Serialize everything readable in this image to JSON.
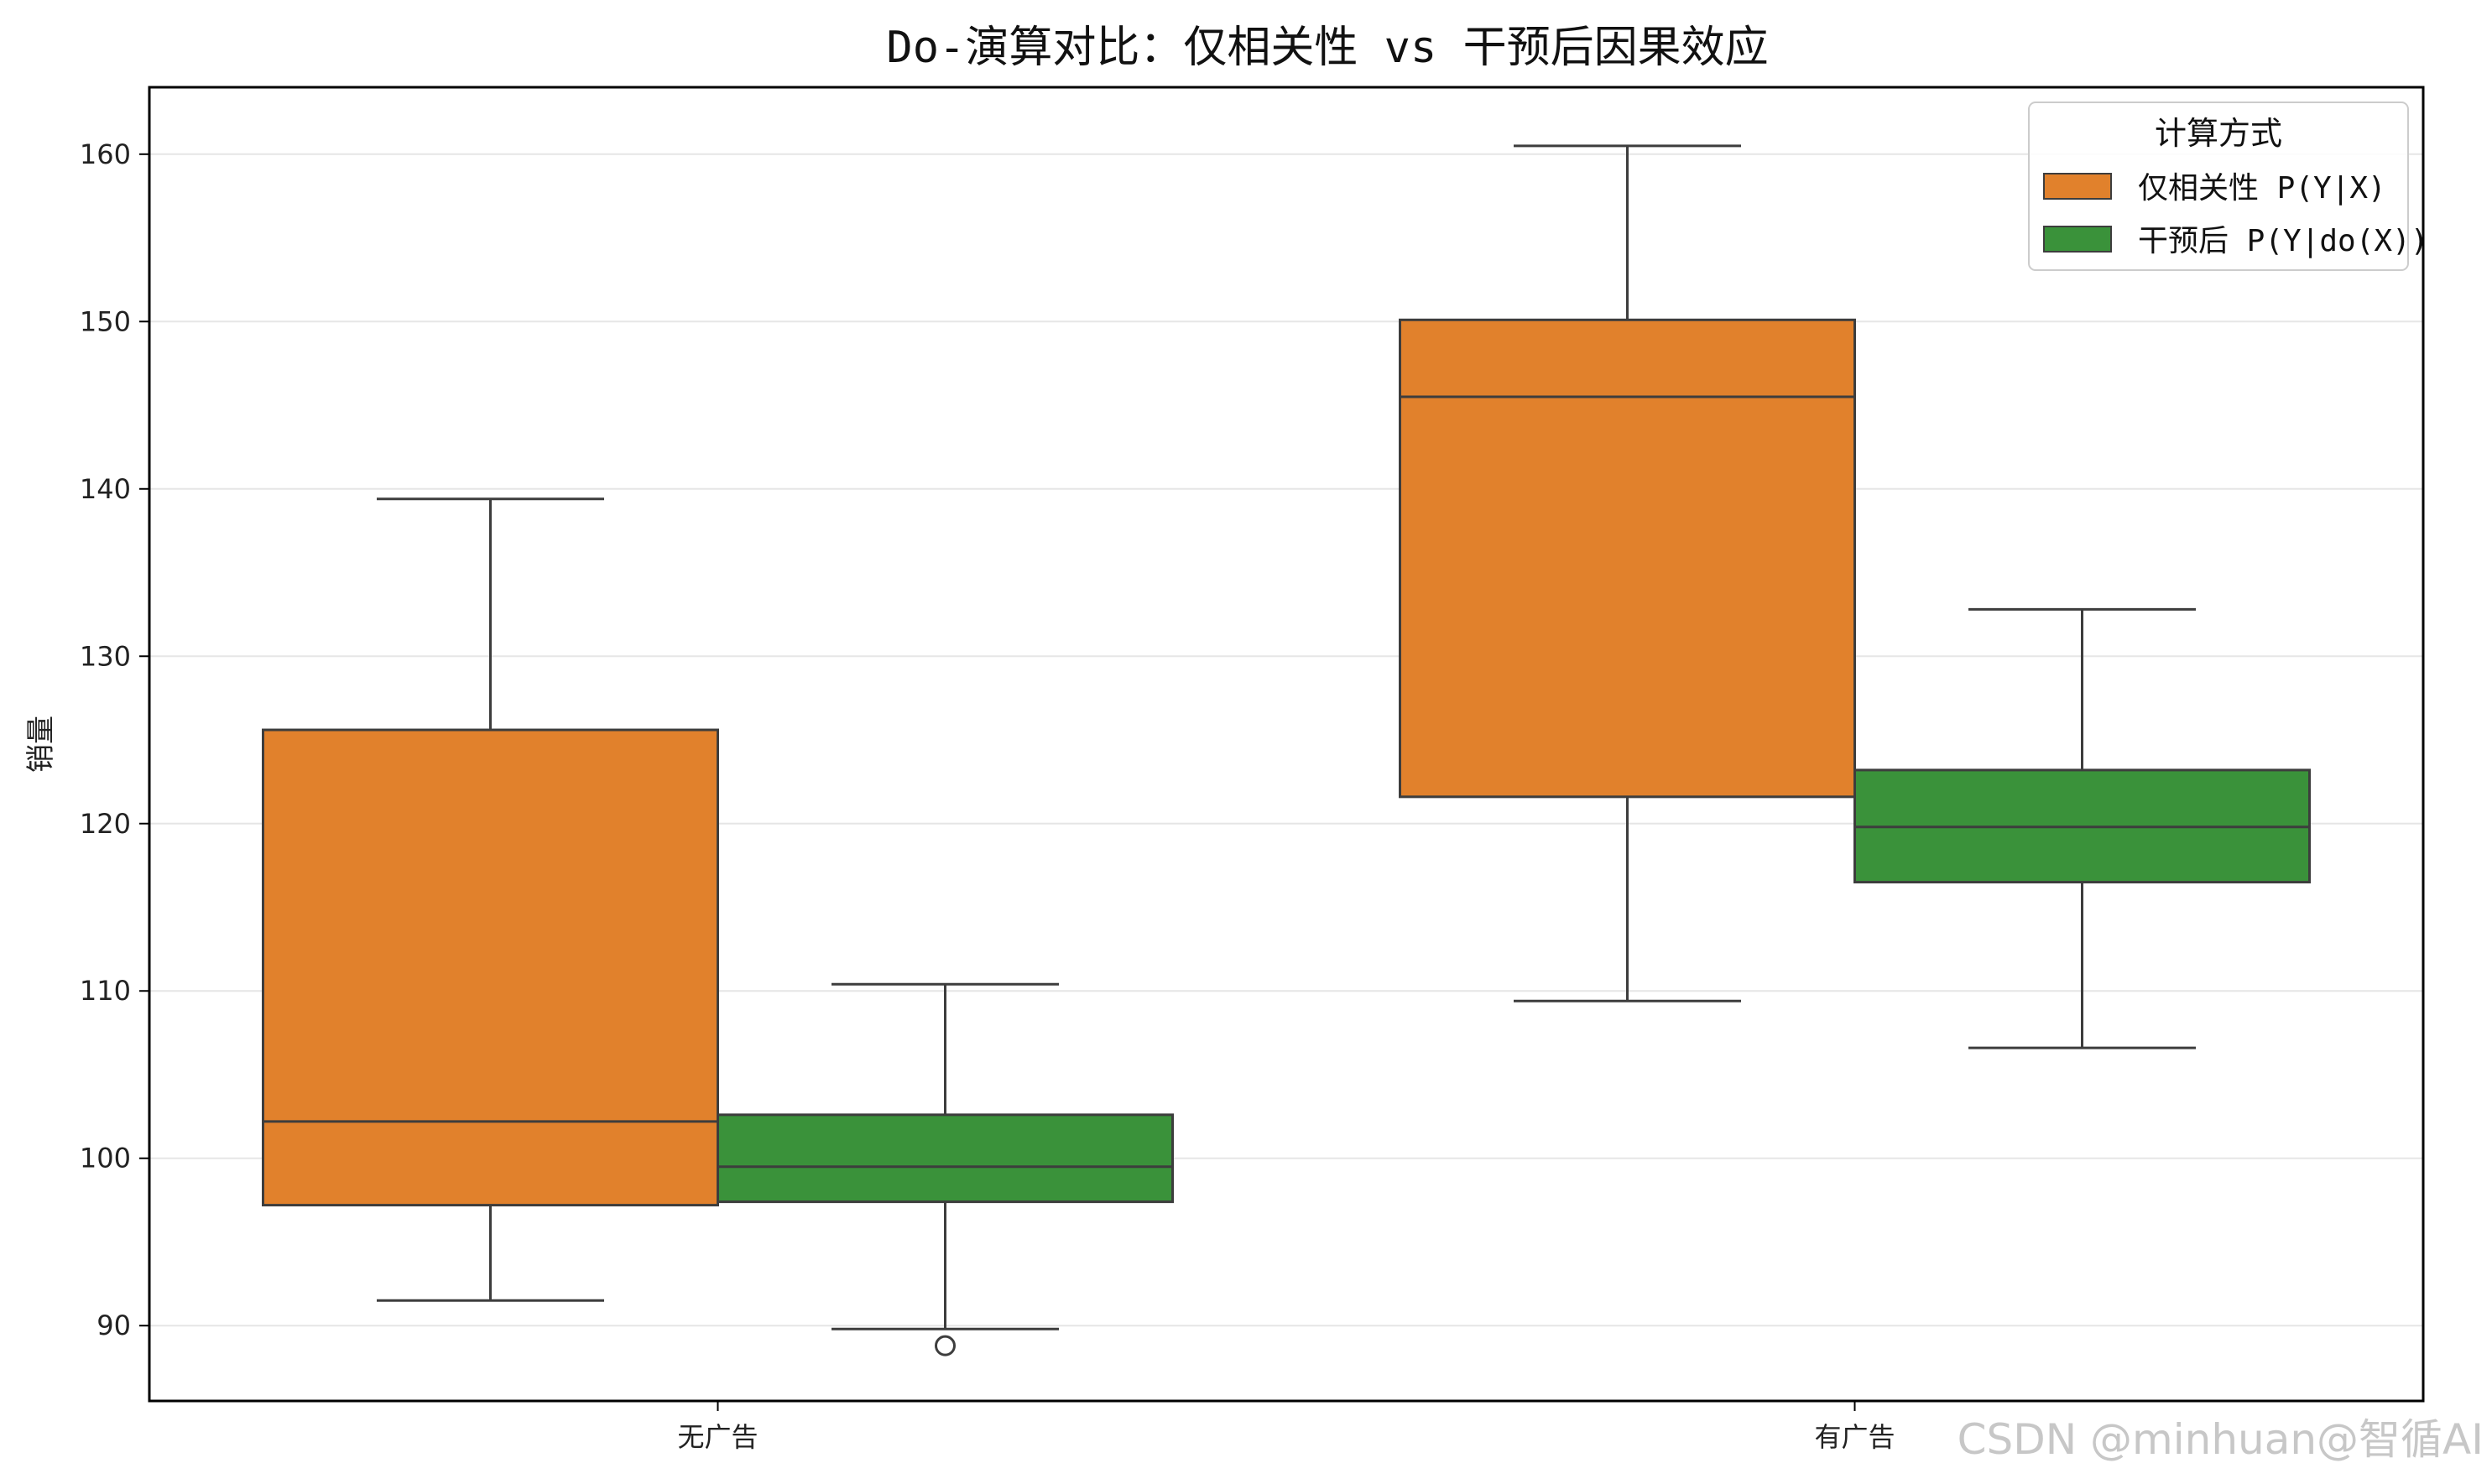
{
  "chart_data": {
    "type": "box",
    "title": "Do-演算对比：仅相关性 vs 干预后因果效应",
    "xlabel": "",
    "ylabel": "销量",
    "ylim": [
      85.5,
      164
    ],
    "yticks": [
      90,
      100,
      110,
      120,
      130,
      140,
      150,
      160
    ],
    "categories": [
      "无广告",
      "有广告"
    ],
    "grid": "horizontal",
    "legend": {
      "title": "计算方式",
      "placement": "top-right"
    },
    "colors": {
      "series_0": "#e1812c",
      "series_1": "#3a923a",
      "edge": "#3d3d3d",
      "grid": "#e6e6e6"
    },
    "series": [
      {
        "name": "仅相关性 P(Y|X)",
        "boxes": [
          {
            "category": "无广告",
            "whisker_low": 91.5,
            "q1": 97.2,
            "median": 102.2,
            "q3": 125.6,
            "whisker_high": 139.4,
            "outliers": []
          },
          {
            "category": "有广告",
            "whisker_low": 109.4,
            "q1": 121.6,
            "median": 145.5,
            "q3": 150.1,
            "whisker_high": 160.5,
            "outliers": []
          }
        ]
      },
      {
        "name": "干预后 P(Y|do(X))",
        "boxes": [
          {
            "category": "无广告",
            "whisker_low": 89.8,
            "q1": 97.4,
            "median": 99.5,
            "q3": 102.6,
            "whisker_high": 110.4,
            "outliers": [
              88.8
            ]
          },
          {
            "category": "有广告",
            "whisker_low": 106.6,
            "q1": 116.5,
            "median": 119.8,
            "q3": 123.2,
            "whisker_high": 132.8,
            "outliers": []
          }
        ]
      }
    ]
  },
  "watermark": "CSDN @minhuan@智循AI"
}
